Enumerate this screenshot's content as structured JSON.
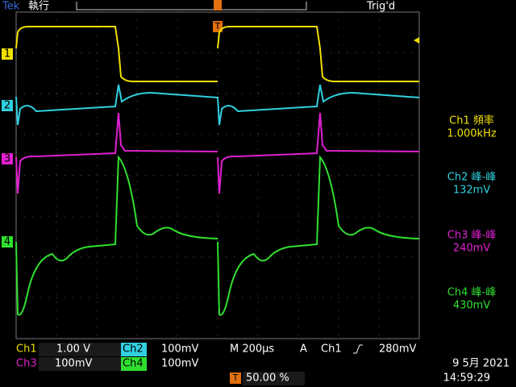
{
  "header": {
    "brand": "Tek",
    "status": "執行",
    "trigger_status": "Trig'd",
    "trigger_marker": "T"
  },
  "channel_markers": [
    "1",
    "2",
    "3",
    "4"
  ],
  "measurements": [
    {
      "label": "Ch1 頻率",
      "value": "1.000kHz"
    },
    {
      "label": "Ch2 峰-峰",
      "value": "132mV"
    },
    {
      "label": "Ch3 峰-峰",
      "value": "240mV"
    },
    {
      "label": "Ch4 峰-峰",
      "value": "430mV"
    }
  ],
  "footer": {
    "ch1": {
      "label": "Ch1",
      "scale": "1.00 V"
    },
    "ch2": {
      "label": "Ch2",
      "scale": "100mV"
    },
    "ch3": {
      "label": "Ch3",
      "scale": "100mV"
    },
    "ch4": {
      "label": "Ch4",
      "scale": "100mV"
    },
    "timebase": "M 200µs",
    "trigger": {
      "mode": "A",
      "source": "Ch1",
      "level": "280mV"
    },
    "trigger_position_marker": "T",
    "trigger_position": "50.00 %",
    "date": "9 5月 2021",
    "time": "14:59:29"
  }
}
